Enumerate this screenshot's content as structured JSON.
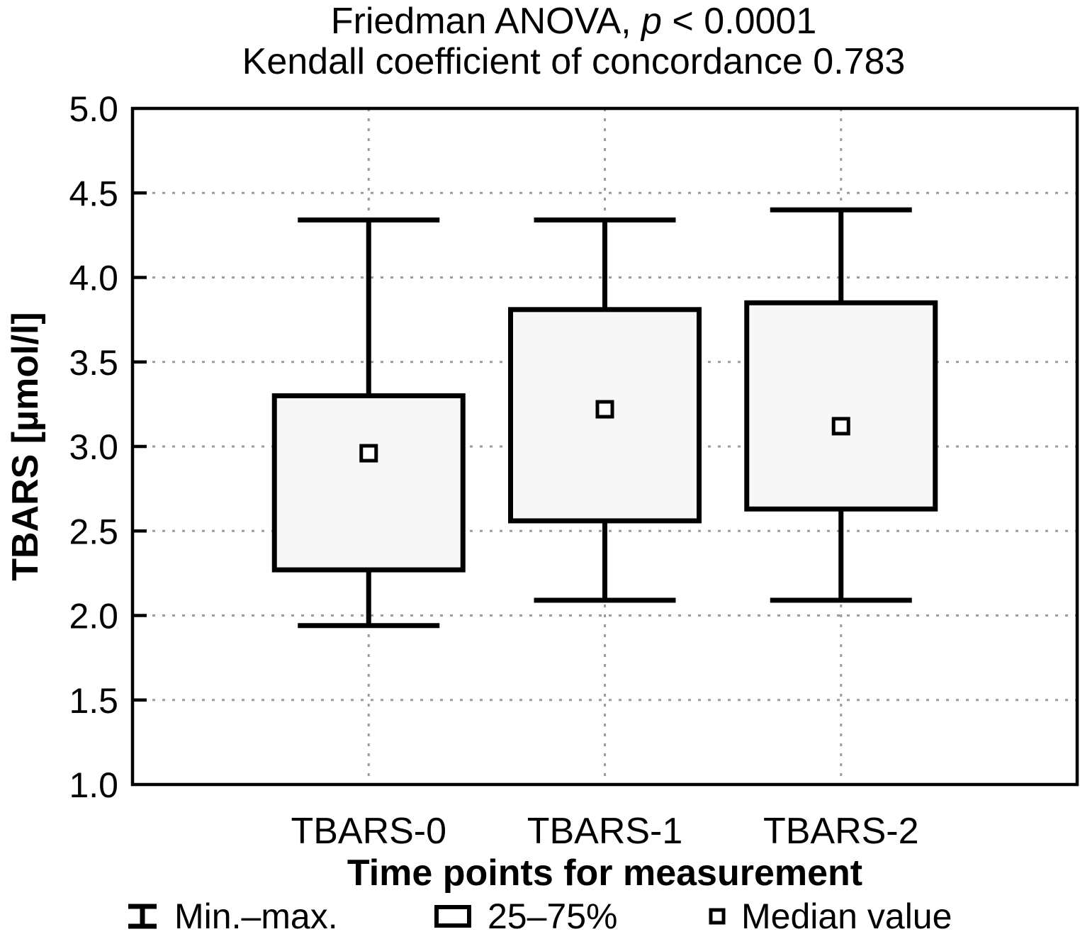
{
  "title": {
    "prefix": "Friedman ANOVA, ",
    "p_italic": "p",
    "suffix": " < 0.0001"
  },
  "subtitle": "Kendall coefficient of concordance 0.783",
  "chart_data": {
    "type": "box",
    "title": "Friedman ANOVA, p < 0.0001",
    "subtitle": "Kendall coefficient of concordance 0.783",
    "categories": [
      "TBARS-0",
      "TBARS-1",
      "TBARS-2"
    ],
    "series": [
      {
        "name": "TBARS-0",
        "min": 1.94,
        "q1": 2.27,
        "median": 2.96,
        "q3": 3.3,
        "max": 4.34
      },
      {
        "name": "TBARS-1",
        "min": 2.09,
        "q1": 2.56,
        "median": 3.22,
        "q3": 3.81,
        "max": 4.34
      },
      {
        "name": "TBARS-2",
        "min": 2.09,
        "q1": 2.63,
        "median": 3.12,
        "q3": 3.85,
        "max": 4.4
      }
    ],
    "xlabel": "Time points for measurement",
    "ylabel": "TBARS [µmol/l]",
    "ylim": [
      1.0,
      5.0
    ],
    "y_tick_step": 0.5,
    "y_tick_labels": [
      "5.0",
      "4.5",
      "4.0",
      "3.5",
      "3.0",
      "2.5",
      "2.0",
      "1.5",
      "1.0"
    ],
    "grid": "dotted",
    "legend_position": "bottom",
    "legend": [
      {
        "glyph": "minmax-whisker",
        "label": "Min.–max."
      },
      {
        "glyph": "box-25-75",
        "label": "25–75%"
      },
      {
        "glyph": "median-square",
        "label": "Median value"
      }
    ]
  },
  "colors": {
    "line": "#000000",
    "box_fill": "#f7f7f7",
    "grid": "#9b9b9b",
    "background": "#ffffff"
  }
}
